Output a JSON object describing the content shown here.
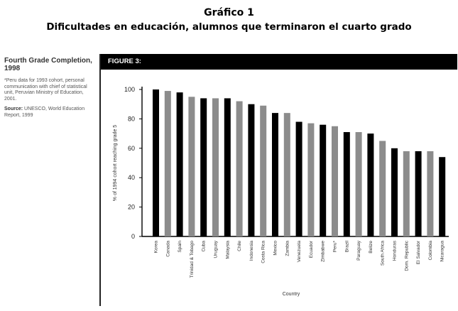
{
  "header": {
    "title_line1": "Gráfico 1",
    "title_line2": "Dificultades en educación, alumnos que terminaron el cuarto grado"
  },
  "sidebar": {
    "title": "Fourth Grade Completion, 1998",
    "note": "*Peru data for 1993 cohort, personal communication with chief of statistical unit, Peruvian Ministry of Education, 2001.",
    "source_label": "Source:",
    "source_text": "UNESCO, World Education Report, 1999"
  },
  "figure": {
    "banner": "FIGURE 3:"
  },
  "colors": {
    "dark_bar": "#000000",
    "light_bar": "#8c8c8c",
    "banner_bg": "#000000"
  },
  "chart_data": {
    "type": "bar",
    "xlabel": "Country",
    "ylabel": "% of 1994 cohort reaching grade 5",
    "ylim": [
      0,
      100
    ],
    "yticks": [
      0,
      20,
      40,
      60,
      80,
      100
    ],
    "grid": false,
    "categories": [
      "Korea",
      "Canada",
      "Spain",
      "Trinidad & Tobago",
      "Cuba",
      "Uruguay",
      "Malaysia",
      "Chile",
      "Indonesia",
      "Costa Rica",
      "Mexico",
      "Zambia",
      "Venezuela",
      "Ecuador",
      "Zimbabwe",
      "Peru*",
      "Brazil",
      "Paraguay",
      "Belize",
      "South Africa",
      "Honduras",
      "Dom. Republic",
      "El Salvador",
      "Colombia",
      "Nicaragua"
    ],
    "values": [
      100,
      99,
      98,
      95,
      94,
      94,
      94,
      92,
      90,
      89,
      84,
      84,
      78,
      77,
      76,
      75,
      71,
      71,
      70,
      65,
      60,
      58,
      58,
      58,
      54
    ],
    "bar_shades": [
      "dark",
      "light",
      "dark",
      "light",
      "dark",
      "light",
      "dark",
      "light",
      "dark",
      "light",
      "dark",
      "light",
      "dark",
      "light",
      "dark",
      "light",
      "dark",
      "light",
      "dark",
      "light",
      "dark",
      "light",
      "dark",
      "light",
      "dark"
    ]
  }
}
